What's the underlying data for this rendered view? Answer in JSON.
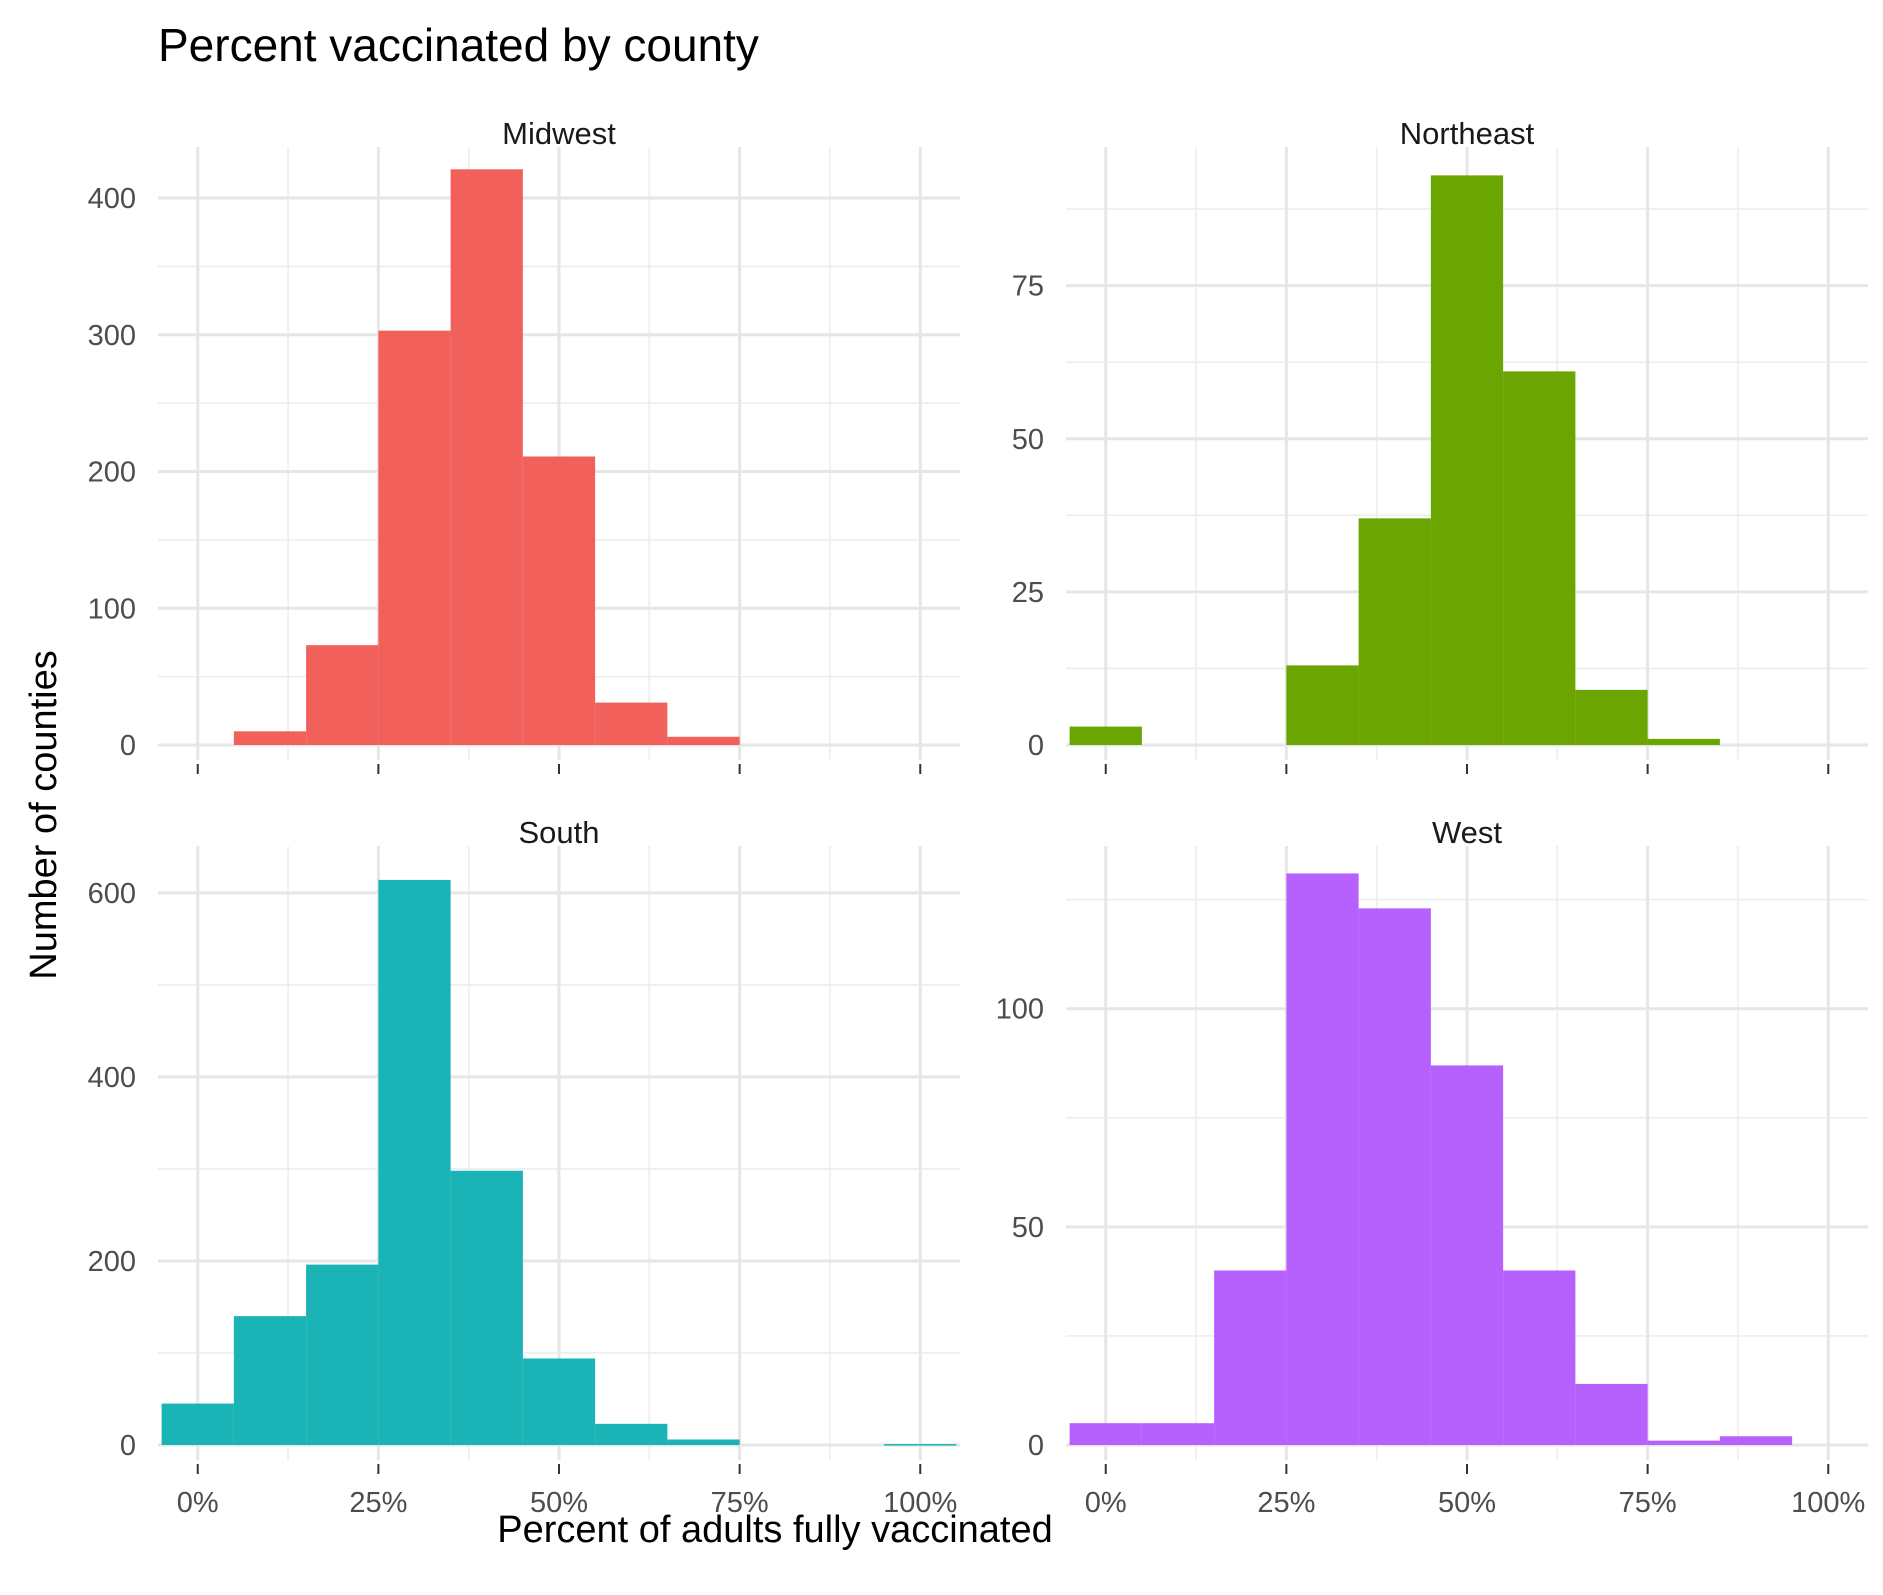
{
  "chart_data": {
    "type": "bar",
    "title": "Percent vaccinated by county",
    "xlabel": "Percent of adults fully vaccinated",
    "ylabel": "Number of counties",
    "x_tick_labels": [
      "0%",
      "25%",
      "50%",
      "75%",
      "100%"
    ],
    "x_ticks": [
      0,
      25,
      50,
      75,
      100
    ],
    "xlim": [
      -5.5,
      105.5
    ],
    "bin_width": 10,
    "grid": true,
    "legend": "none",
    "panels": [
      {
        "name": "Midwest",
        "color": "#F2605B",
        "ylim": [
          0,
          430
        ],
        "y_ticks": [
          0,
          100,
          200,
          300,
          400
        ],
        "y_tick_labels": [
          "0",
          "100",
          "200",
          "300",
          "400"
        ],
        "y_minor": [
          50,
          150,
          250,
          350
        ],
        "bins": [
          {
            "x": 10,
            "y": 10
          },
          {
            "x": 20,
            "y": 73
          },
          {
            "x": 30,
            "y": 303
          },
          {
            "x": 40,
            "y": 421
          },
          {
            "x": 50,
            "y": 211
          },
          {
            "x": 60,
            "y": 31
          },
          {
            "x": 70,
            "y": 6
          }
        ]
      },
      {
        "name": "Northeast",
        "color": "#6AA501",
        "ylim": [
          0,
          96
        ],
        "y_ticks": [
          0,
          25,
          50,
          75
        ],
        "y_tick_labels": [
          "0",
          "25",
          "50",
          "75"
        ],
        "y_minor": [
          12.5,
          37.5,
          62.5,
          87.5
        ],
        "bins": [
          {
            "x": 0,
            "y": 3
          },
          {
            "x": 30,
            "y": 13
          },
          {
            "x": 40,
            "y": 37
          },
          {
            "x": 50,
            "y": 93
          },
          {
            "x": 60,
            "y": 61
          },
          {
            "x": 70,
            "y": 9
          },
          {
            "x": 80,
            "y": 1
          }
        ]
      },
      {
        "name": "South",
        "color": "#1AB3B6",
        "ylim": [
          0,
          640
        ],
        "y_ticks": [
          0,
          200,
          400,
          600
        ],
        "y_tick_labels": [
          "0",
          "200",
          "400",
          "600"
        ],
        "y_minor": [
          100,
          300,
          500
        ],
        "bins": [
          {
            "x": 0,
            "y": 45
          },
          {
            "x": 10,
            "y": 140
          },
          {
            "x": 20,
            "y": 196
          },
          {
            "x": 30,
            "y": 614
          },
          {
            "x": 40,
            "y": 298
          },
          {
            "x": 50,
            "y": 94
          },
          {
            "x": 60,
            "y": 23
          },
          {
            "x": 70,
            "y": 6
          },
          {
            "x": 100,
            "y": 1
          }
        ]
      },
      {
        "name": "West",
        "color": "#B660FE",
        "ylim": [
          0,
          135
        ],
        "y_ticks": [
          0,
          50,
          100
        ],
        "y_tick_labels": [
          "0",
          "50",
          "100"
        ],
        "y_minor": [
          25,
          75,
          125
        ],
        "bins": [
          {
            "x": 0,
            "y": 5
          },
          {
            "x": 10,
            "y": 5
          },
          {
            "x": 20,
            "y": 40
          },
          {
            "x": 30,
            "y": 131
          },
          {
            "x": 40,
            "y": 123
          },
          {
            "x": 50,
            "y": 87
          },
          {
            "x": 60,
            "y": 40
          },
          {
            "x": 70,
            "y": 14
          },
          {
            "x": 80,
            "y": 1
          },
          {
            "x": 90,
            "y": 2
          }
        ]
      }
    ]
  }
}
